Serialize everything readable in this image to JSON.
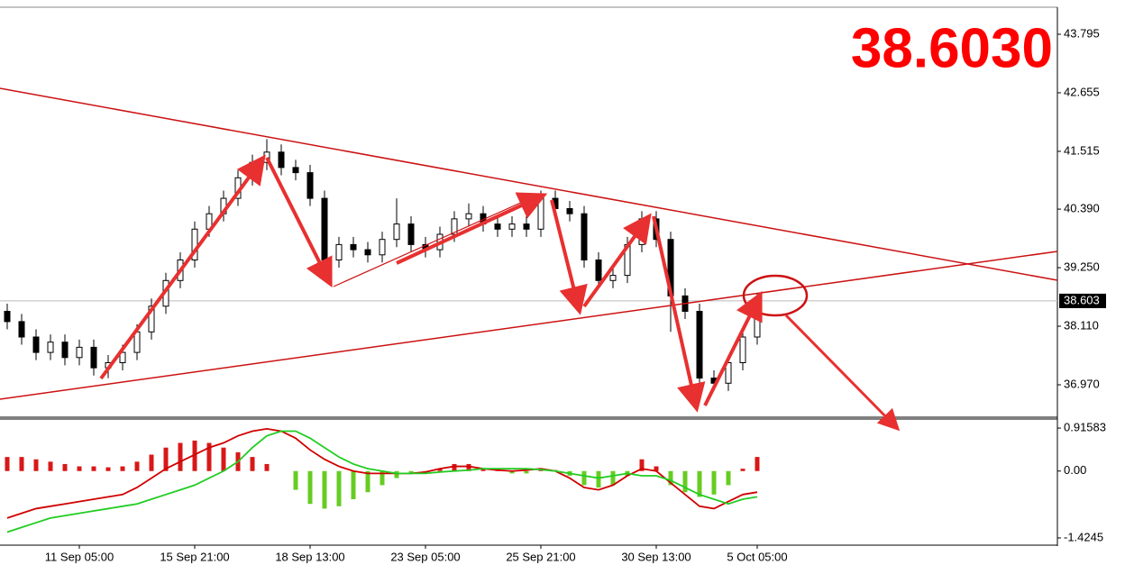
{
  "chart_data": {
    "type": "candlestick",
    "annotation": "38.6030",
    "current_price": 38.603,
    "categories": [
      null,
      null,
      null,
      null,
      null,
      "11 Sep 05:00",
      null,
      null,
      null,
      null,
      null,
      null,
      null,
      "15 Sep 21:00",
      null,
      null,
      null,
      null,
      null,
      null,
      null,
      "18 Sep 13:00",
      null,
      null,
      null,
      null,
      null,
      null,
      null,
      "23 Sep 05:00",
      null,
      null,
      null,
      null,
      null,
      null,
      null,
      "25 Sep 21:00",
      null,
      null,
      null,
      null,
      null,
      null,
      null,
      "30 Sep 13:00",
      null,
      null,
      null,
      null,
      null,
      null,
      "5 Oct 05:00"
    ],
    "open": [
      38.4,
      38.2,
      37.9,
      37.6,
      37.8,
      37.5,
      37.7,
      37.3,
      37.4,
      37.6,
      38.0,
      38.5,
      39.0,
      39.4,
      40.0,
      40.3,
      40.6,
      41.0,
      41.3,
      41.5,
      41.2,
      41.1,
      40.6,
      39.4,
      39.7,
      39.6,
      39.5,
      39.8,
      40.1,
      39.7,
      39.6,
      39.9,
      40.2,
      40.3,
      40.1,
      40.0,
      40.1,
      40.0,
      40.6,
      40.4,
      40.3,
      39.4,
      39.0,
      39.1,
      39.7,
      40.2,
      39.8,
      38.7,
      38.4,
      37.1,
      37.0,
      37.4,
      37.9
    ],
    "high": [
      38.55,
      38.35,
      38.05,
      37.95,
      37.95,
      37.85,
      37.85,
      37.55,
      37.75,
      38.15,
      38.65,
      39.15,
      39.55,
      40.15,
      40.45,
      40.75,
      41.15,
      41.45,
      41.75,
      41.65,
      41.35,
      41.25,
      40.75,
      39.85,
      39.85,
      39.75,
      39.95,
      40.6,
      40.25,
      39.85,
      40.05,
      40.35,
      40.5,
      40.45,
      40.25,
      40.25,
      40.25,
      40.75,
      40.75,
      40.55,
      40.45,
      39.55,
      39.25,
      39.85,
      40.35,
      40.35,
      39.95,
      38.85,
      38.55,
      37.25,
      37.55,
      38.05,
      38.75
    ],
    "low": [
      38.05,
      37.75,
      37.45,
      37.45,
      37.35,
      37.35,
      37.15,
      37.1,
      37.25,
      37.45,
      37.85,
      38.35,
      38.85,
      39.25,
      39.85,
      40.15,
      40.45,
      40.85,
      41.15,
      41.05,
      40.95,
      40.45,
      39.2,
      39.25,
      39.45,
      39.35,
      39.35,
      39.65,
      39.55,
      39.45,
      39.45,
      39.75,
      40.05,
      39.95,
      39.85,
      39.85,
      39.85,
      39.85,
      40.25,
      40.15,
      39.25,
      38.85,
      38.85,
      38.95,
      39.55,
      39.65,
      38.0,
      38.25,
      36.95,
      36.85,
      36.85,
      37.25,
      37.75
    ],
    "close": [
      38.2,
      37.9,
      37.6,
      37.8,
      37.5,
      37.7,
      37.3,
      37.4,
      37.6,
      38.0,
      38.5,
      39.0,
      39.4,
      40.0,
      40.3,
      40.6,
      41.0,
      41.3,
      41.5,
      41.2,
      41.1,
      40.6,
      39.4,
      39.7,
      39.6,
      39.5,
      39.8,
      40.1,
      39.7,
      39.6,
      39.9,
      40.2,
      40.3,
      40.1,
      40.0,
      40.1,
      40.0,
      40.6,
      40.4,
      40.3,
      39.4,
      39.0,
      39.1,
      39.7,
      40.2,
      39.8,
      38.7,
      38.4,
      37.1,
      37.0,
      37.4,
      37.9,
      38.6
    ],
    "up_color": "#ffffff",
    "down_color": "#000000",
    "ylim": [
      36.356,
      44.286
    ],
    "yticks": [
      43.795,
      42.655,
      41.515,
      {
        "value": 40.39,
        "label": "40.390"
      },
      {
        "value": 39.25,
        "label": "39.250"
      },
      {
        "value": 38.11,
        "label": "38.110"
      },
      {
        "value": 36.97,
        "label": "36.970"
      }
    ],
    "macd": {
      "ylim": [
        -1.579,
        1.109
      ],
      "yticks": [
        0.91583,
        {
          "value": 0,
          "label": "0.00"
        },
        -1.4245
      ],
      "histogram": [
        0.3,
        0.3,
        0.25,
        0.2,
        0.15,
        0.1,
        0.1,
        0.08,
        0.1,
        0.2,
        0.35,
        0.5,
        0.6,
        0.65,
        0.6,
        0.5,
        0.4,
        0.3,
        0.15,
        0.0,
        -0.4,
        -0.7,
        -0.8,
        -0.75,
        -0.6,
        -0.45,
        -0.3,
        -0.15,
        -0.05,
        -0.05,
        0.05,
        0.15,
        0.15,
        0.05,
        0.02,
        -0.05,
        -0.05,
        0.05,
        0.02,
        -0.1,
        -0.3,
        -0.35,
        -0.3,
        -0.1,
        0.25,
        0.1,
        -0.3,
        -0.45,
        -0.55,
        -0.5,
        -0.3,
        0.05,
        0.3
      ],
      "positive_color": "#d81818",
      "negative_color": "#66cc22",
      "series": [
        {
          "color": "#d00000",
          "values": [
            -1.0,
            -0.9,
            -0.8,
            -0.75,
            -0.7,
            -0.65,
            -0.6,
            -0.55,
            -0.5,
            -0.35,
            -0.15,
            0.05,
            0.2,
            0.35,
            0.5,
            0.6,
            0.75,
            0.85,
            0.9,
            0.85,
            0.7,
            0.45,
            0.25,
            0.1,
            0.0,
            -0.05,
            -0.05,
            -0.05,
            -0.05,
            -0.02,
            0.05,
            0.1,
            0.1,
            0.05,
            0.02,
            0.0,
            0.02,
            0.05,
            0.0,
            -0.15,
            -0.35,
            -0.4,
            -0.3,
            -0.1,
            0.05,
            0.0,
            -0.25,
            -0.5,
            -0.75,
            -0.8,
            -0.65,
            -0.5,
            -0.45
          ]
        },
        {
          "color": "#22cc22",
          "values": [
            -1.3,
            -1.2,
            -1.1,
            -1.0,
            -0.95,
            -0.9,
            -0.85,
            -0.8,
            -0.75,
            -0.7,
            -0.6,
            -0.5,
            -0.4,
            -0.3,
            -0.15,
            0.0,
            0.2,
            0.5,
            0.75,
            0.85,
            0.85,
            0.7,
            0.5,
            0.3,
            0.15,
            0.05,
            0.0,
            -0.05,
            -0.05,
            -0.05,
            -0.02,
            0.0,
            0.02,
            0.05,
            0.05,
            0.05,
            0.05,
            0.03,
            0.0,
            -0.05,
            -0.1,
            -0.15,
            -0.1,
            -0.05,
            -0.1,
            -0.1,
            -0.2,
            -0.35,
            -0.5,
            -0.6,
            -0.7,
            -0.6,
            -0.55
          ]
        }
      ]
    }
  }
}
